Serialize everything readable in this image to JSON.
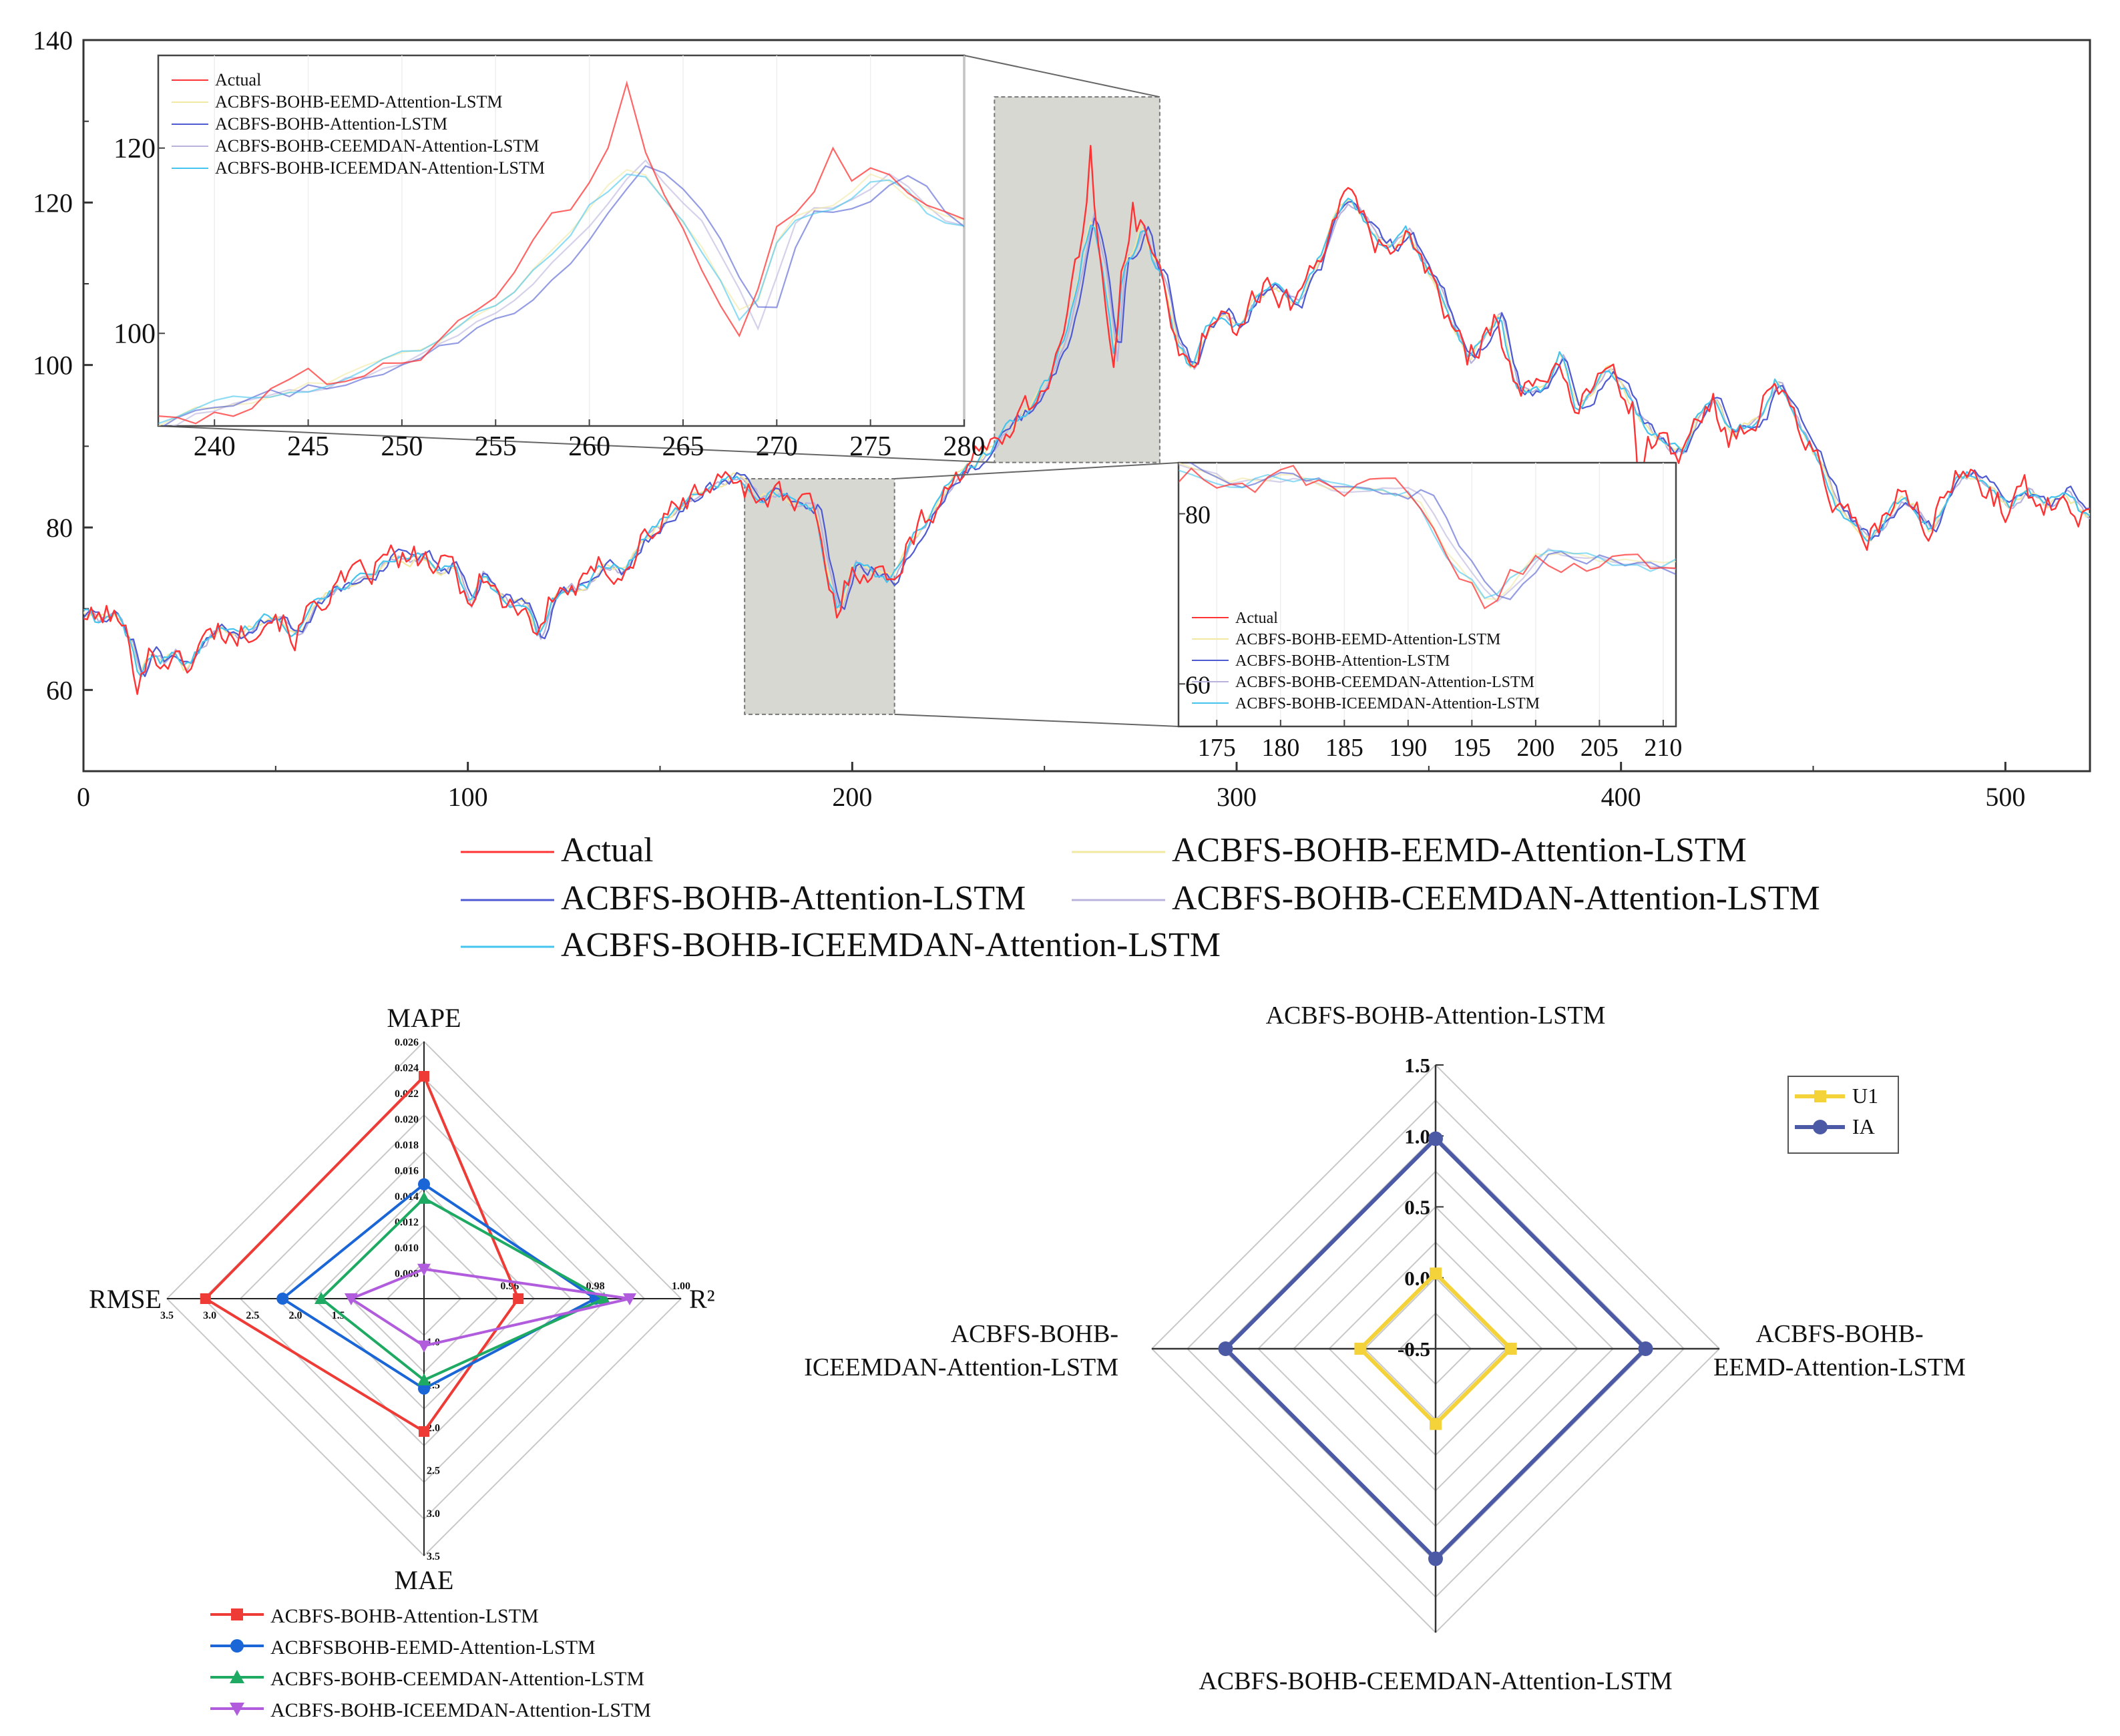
{
  "chart_data": [
    {
      "type": "line",
      "title": "",
      "xlabel": "",
      "ylabel": "",
      "xlim": [
        0,
        522
      ],
      "ylim": [
        50,
        140
      ],
      "xticks": [
        0,
        100,
        200,
        300,
        400,
        500
      ],
      "yticks": [
        60,
        80,
        100,
        120,
        140
      ],
      "grid": false,
      "legend": {
        "placement": "bottom",
        "entries": [
          {
            "label": "Actual",
            "color": "#ff3333"
          },
          {
            "label": "ACBFS-BOHB-EEMD-Attention-LSTM",
            "color": "#f1e8a2"
          },
          {
            "label": "ACBFS-BOHB-Attention-LSTM",
            "color": "#4d5ad1"
          },
          {
            "label": "ACBFS-BOHB-CEEMDAN-Attention-LSTM",
            "color": "#b9b2dd"
          },
          {
            "label": "ACBFS-BOHB-ICEEMDAN-Attention-LSTM",
            "color": "#44c4ee"
          }
        ]
      },
      "anchors_x": [
        0,
        3,
        6,
        9,
        12,
        14,
        17,
        20,
        23,
        26,
        29,
        32,
        35,
        40,
        45,
        50,
        55,
        60,
        65,
        70,
        75,
        80,
        85,
        88,
        92,
        96,
        100,
        103,
        106,
        110,
        115,
        118,
        122,
        126,
        130,
        135,
        140,
        145,
        150,
        155,
        160,
        165,
        170,
        175,
        180,
        185,
        190,
        193,
        196,
        200,
        205,
        210,
        215,
        220,
        225,
        230,
        235,
        240,
        245,
        250,
        255,
        258,
        260,
        262,
        265,
        268,
        270,
        273,
        275,
        278,
        280,
        284,
        288,
        292,
        296,
        300,
        305,
        310,
        315,
        320,
        325,
        328,
        332,
        336,
        340,
        344,
        348,
        352,
        356,
        360,
        364,
        368,
        372,
        376,
        380,
        384,
        388,
        392,
        396,
        400,
        404,
        408,
        412,
        416,
        420,
        424,
        428,
        432,
        436,
        440,
        444,
        448,
        452,
        456,
        460,
        464,
        468,
        472,
        476,
        480,
        484,
        488,
        492,
        496,
        500,
        505,
        510,
        515,
        520
      ],
      "anchors_y": [
        69.5,
        68.5,
        69.5,
        68.5,
        65.5,
        61.5,
        64.5,
        63.5,
        64.5,
        62.5,
        64.5,
        66.5,
        67.5,
        66.5,
        68.5,
        69.5,
        66.5,
        70.5,
        72.5,
        73.5,
        74.5,
        76.5,
        75.5,
        76.5,
        74.5,
        75.5,
        70.5,
        74.5,
        72.5,
        70.5,
        70.5,
        66.5,
        71.5,
        72.5,
        72.5,
        75.5,
        74.5,
        78.5,
        80.5,
        82.5,
        84.5,
        85.5,
        86.5,
        83.5,
        84.5,
        82.5,
        82.5,
        74.5,
        69.5,
        75.5,
        74.5,
        73.5,
        78.5,
        81.5,
        85.5,
        87.5,
        89.5,
        92.5,
        94.5,
        97.5,
        103.5,
        109.5,
        114.5,
        118.5,
        111.5,
        100.5,
        112.5,
        114.5,
        117.5,
        112.5,
        111.5,
        102.5,
        99.5,
        104.5,
        106.5,
        104.5,
        108.5,
        109.5,
        107.5,
        111.5,
        118.5,
        120.5,
        118.5,
        115.5,
        114.5,
        116.5,
        112.5,
        109.5,
        104.5,
        100.5,
        103.5,
        106.5,
        97.5,
        96.5,
        97.5,
        101.5,
        94.5,
        96.5,
        99.5,
        97.5,
        93.5,
        91.5,
        89.5,
        89.5,
        94.5,
        95.5,
        91.5,
        92.5,
        93.5,
        98.5,
        94.5,
        90.5,
        87.5,
        82.5,
        80.5,
        78.5,
        80.5,
        83.5,
        82.5,
        79.5,
        83.5,
        86.5,
        86.5,
        84.5,
        82.5,
        84.5,
        82.5,
        84.5,
        81.5
      ],
      "series": [
        {
          "name": "Actual",
          "color": "#ff3333",
          "noise": 1.6,
          "spike": [
            [
              262,
              127
            ],
            [
              273,
              120
            ],
            [
              258,
              113
            ],
            [
              405,
              81
            ],
            [
              143,
              75
            ]
          ]
        },
        {
          "name": "ACBFS-BOHB-EEMD-Attention-LSTM",
          "color": "#f1e8a2",
          "noise": 0.5,
          "lag": 0.5
        },
        {
          "name": "ACBFS-BOHB-Attention-LSTM",
          "color": "#4d5ad1",
          "noise": 0.7,
          "lag": 1.6
        },
        {
          "name": "ACBFS-BOHB-CEEMDAN-Attention-LSTM",
          "color": "#b9b2dd",
          "noise": 0.5,
          "lag": 1.1
        },
        {
          "name": "ACBFS-BOHB-ICEEMDAN-Attention-LSTM",
          "color": "#44c4ee",
          "noise": 0.6,
          "lag": 0.4
        }
      ],
      "insets": [
        {
          "range_x": [
            237,
            280
          ],
          "ylim": [
            90,
            130
          ],
          "xticks": [
            240,
            245,
            250,
            255,
            260,
            265,
            270,
            275,
            280
          ],
          "yticks": [
            100,
            120
          ],
          "legend": [
            "Actual",
            "ACBFS-BOHB-EEMD-Attention-LSTM",
            "ACBFS-BOHB-Attention-LSTM",
            "ACBFS-BOHB-CEEMDAN-Attention-LSTM",
            "ACBFS-BOHB-ICEEMDAN-Attention-LSTM"
          ]
        },
        {
          "range_x": [
            172,
            211
          ],
          "ylim": [
            55,
            86
          ],
          "xticks": [
            175,
            180,
            185,
            190,
            195,
            200,
            205,
            210
          ],
          "yticks": [
            60,
            80
          ],
          "legend": [
            "Actual",
            "ACBFS-BOHB-EEMD-Attention-LSTM",
            "ACBFS-BOHB-Attention-LSTM",
            "ACBFS-BOHB-CEEMDAN-Attention-LSTM",
            "ACBFS-BOHB-ICEEMDAN-Attention-LSTM"
          ]
        }
      ]
    },
    {
      "type": "radar",
      "title": "",
      "axes": [
        "MAPE",
        "R²",
        "MAE",
        "RMSE"
      ],
      "axis_ranges": {
        "MAPE": [
          0.006,
          0.026
        ],
        "R²": [
          0.94,
          1.0
        ],
        "MAE": [
          0.5,
          3.5
        ],
        "RMSE": [
          0.5,
          3.5
        ]
      },
      "tick_labels": {
        "MAPE": [
          "0.008",
          "0.010",
          "0.012",
          "0.014",
          "0.016",
          "0.018",
          "0.020",
          "0.022",
          "0.024",
          "0.026"
        ],
        "R²": [
          "0.96",
          "0.98",
          "1.00"
        ],
        "MAE": [
          "1.0",
          "1.5",
          "2.0",
          "2.5",
          "3.0",
          "3.5"
        ],
        "RMSE": [
          "1.5",
          "2.0",
          "2.5",
          "3.0",
          "3.5"
        ]
      },
      "series": [
        {
          "name": "ACBFS-BOHB-Attention-LSTM",
          "color": "#ef3b36",
          "marker": "square",
          "values": {
            "MAPE": 0.0233,
            "R²": 0.962,
            "MAE": 2.05,
            "RMSE": 3.05
          }
        },
        {
          "name": "ACBFSBOHB-EEMD-Attention-LSTM",
          "color": "#1a66d6",
          "marker": "circle",
          "values": {
            "MAPE": 0.0149,
            "R²": 0.98,
            "MAE": 1.55,
            "RMSE": 2.15
          }
        },
        {
          "name": "ACBFS-BOHB-CEEMDAN-Attention-LSTM",
          "color": "#1eaa62",
          "marker": "triangle-up",
          "values": {
            "MAPE": 0.0138,
            "R²": 0.982,
            "MAE": 1.45,
            "RMSE": 1.7
          }
        },
        {
          "name": "ACBFS-BOHB-ICEEMDAN-Attention-LSTM",
          "color": "#b05cdc",
          "marker": "triangle-down",
          "values": {
            "MAPE": 0.0083,
            "R²": 0.988,
            "MAE": 1.05,
            "RMSE": 1.35
          }
        }
      ]
    },
    {
      "type": "radar",
      "title": "",
      "axes": [
        "ACBFS-BOHB-Attention-LSTM",
        "ACBFS-BOHB-EEMD-Attention-LSTM",
        "ACBFS-BOHB-CEEMDAN-Attention-LSTM",
        "ACBFS-BOHB-ICEEMDAN-Attention-LSTM"
      ],
      "axis_labels": [
        [
          "ACBFS-BOHB-Attention-LSTM"
        ],
        [
          "ACBFS-BOHB-",
          "EEMD-Attention-LSTM"
        ],
        [
          "ACBFS-BOHB-CEEMDAN-Attention-LSTM"
        ],
        [
          "ACBFS-BOHB-",
          "ICEEMDAN-Attention-LSTM"
        ]
      ],
      "range": [
        -0.5,
        1.5
      ],
      "tick_labels": [
        "-0.5",
        "0.0",
        "0.5",
        "1.0",
        "1.5"
      ],
      "legend": {
        "placement": "top-right"
      },
      "series": [
        {
          "name": "U1",
          "color": "#f3d23a",
          "marker": "square",
          "values": [
            0.03,
            0.03,
            0.03,
            0.03
          ]
        },
        {
          "name": "IA",
          "color": "#4c5aa5",
          "marker": "circle",
          "values": [
            0.98,
            0.98,
            0.98,
            0.98
          ]
        }
      ]
    }
  ]
}
